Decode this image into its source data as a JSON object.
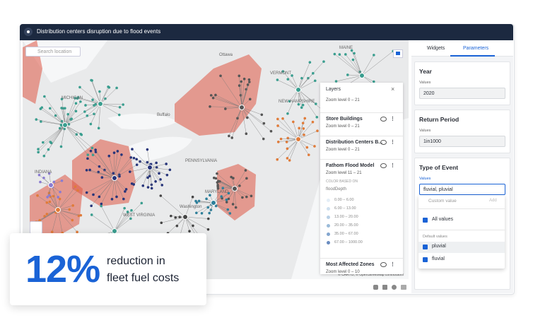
{
  "header": {
    "title": "Distribution centers disruption due to flood events"
  },
  "map": {
    "search_placeholder": "Search location",
    "labels": [
      "Ottawa",
      "MAINE",
      "VERMONT",
      "NEW HAMPSHIRE",
      "MICHIGAN",
      "Buffalo",
      "PENNSYLVANIA",
      "MARYLAND",
      "Washington",
      "WEST VIRGINIA",
      "INDIANA"
    ],
    "attribution": "© CARTO, © OpenStreetMap contributors"
  },
  "layers_panel": {
    "title": "Layers",
    "layers": [
      {
        "zoom": "Zoom level 0 – 21"
      },
      {
        "name": "Store Buildings",
        "zoom": "Zoom level 0 – 21"
      },
      {
        "name": "Distribution Centers B...",
        "zoom": "Zoom level 0 – 21"
      },
      {
        "name": "Fathom Flood Model",
        "zoom": "Zoom level 11 – 21"
      },
      {
        "name": "Most Affected Zones",
        "zoom": "Zoom level 0 – 10"
      }
    ],
    "legend": {
      "heading": "COLOR BASED ON",
      "field": "floodDepth",
      "ranges": [
        "0.00 – 6.00",
        "6.00 – 13.00",
        "13.00 – 20.00",
        "20.00 – 35.00",
        "35.00 – 67.00",
        "67.00 – 1000.00"
      ]
    }
  },
  "sidebar": {
    "tabs": [
      "Widgets",
      "Parameters"
    ],
    "parameters": [
      {
        "title": "Year",
        "label": "Values",
        "value": "2020"
      },
      {
        "title": "Return Period",
        "label": "Values",
        "value": "1in1000"
      },
      {
        "title": "Type of Event",
        "label": "Values",
        "value": "fluvial, pluvial"
      }
    ],
    "dropdown": {
      "search_placeholder": "Custom value",
      "add": "Add",
      "all": "All values",
      "group": "Default values",
      "options": [
        "pluvial",
        "fluvial"
      ]
    }
  },
  "stat": {
    "value": "12%",
    "line1": "reduction in",
    "line2": "fleet fuel costs"
  }
}
